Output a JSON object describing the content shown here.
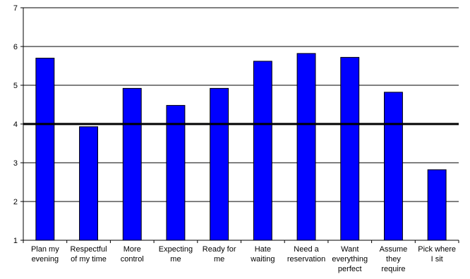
{
  "chart_data": {
    "type": "bar",
    "title": "",
    "xlabel": "",
    "ylabel": "",
    "ylim": [
      1,
      7
    ],
    "yticks": [
      "1",
      "2",
      "3",
      "4",
      "5",
      "6",
      "7"
    ],
    "grid": true,
    "reference_line": 4,
    "categories": [
      [
        "Plan my",
        "evening"
      ],
      [
        "Respectful",
        "of my time"
      ],
      [
        "More",
        "control"
      ],
      [
        "Expecting",
        "me"
      ],
      [
        "Ready for",
        "me"
      ],
      [
        "Hate",
        "waiting"
      ],
      [
        "Need a",
        "reservation"
      ],
      [
        "Want",
        "everything",
        "perfect"
      ],
      [
        "Assume",
        "they",
        "require"
      ],
      [
        "Pick where",
        "I sit"
      ]
    ],
    "values": [
      5.7,
      3.93,
      4.92,
      4.48,
      4.92,
      5.62,
      5.82,
      5.72,
      4.82,
      2.82
    ],
    "bar_color": "#0000ff",
    "reference_line_color": "#000000"
  }
}
